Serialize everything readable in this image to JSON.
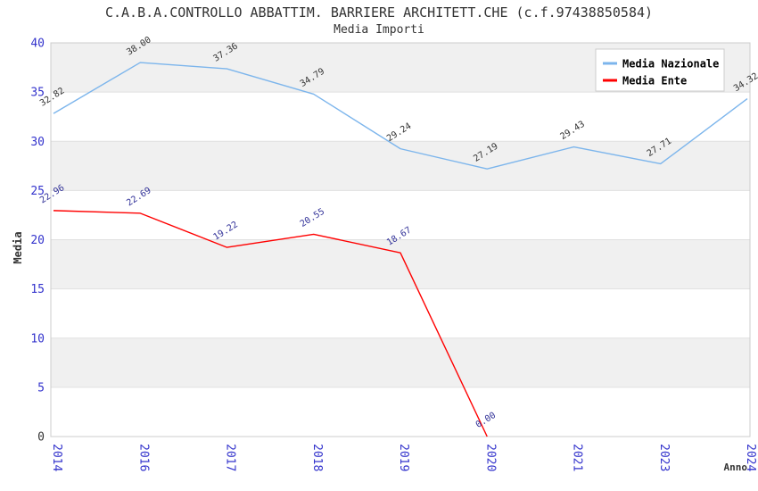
{
  "page": {
    "title": "C.A.B.A.CONTROLLO ABBATTIM. BARRIERE ARCHITETT.CHE (c.f.97438850584)",
    "subtitle": "Media Importi"
  },
  "chart_data": {
    "type": "line",
    "title": "C.A.B.A.CONTROLLO ABBATTIM. BARRIERE ARCHITETT.CHE (c.f.97438850584)",
    "subtitle": "Media Importi",
    "xlabel": "Anno",
    "ylabel": "Media",
    "categories": [
      "2014",
      "2016",
      "2017",
      "2018",
      "2019",
      "2020",
      "2021",
      "2023",
      "2024"
    ],
    "ylim": [
      0,
      40
    ],
    "ytick_step": 5,
    "yticks": [
      0,
      5,
      10,
      15,
      20,
      25,
      30,
      35,
      40
    ],
    "grid": "horizontal-bands-alternating",
    "legend_position": "top-right",
    "legend_entries": [
      "Media Nazionale",
      "Media Ente"
    ],
    "series": [
      {
        "name": "Media Nazionale",
        "color": "#7cb5ec",
        "label_color": "#333333",
        "values": [
          32.82,
          38.0,
          37.36,
          34.79,
          29.24,
          27.19,
          29.43,
          27.71,
          34.32
        ]
      },
      {
        "name": "Media Ente",
        "color": "#ff0000",
        "label_color": "#333399",
        "values": [
          22.96,
          22.69,
          19.22,
          20.55,
          18.67,
          0.0,
          null,
          null,
          null
        ]
      }
    ]
  },
  "colors": {
    "tick_label": "#3333cc",
    "zero_tick_label": "#333333",
    "band_gray": "#f0f0f0",
    "band_white": "#ffffff",
    "gridline": "#e0e0e0",
    "plot_border": "#cccccc",
    "title_text": "#333333",
    "axis_title_text": "#333333",
    "legend_text": "#000000",
    "legend_bg": "#ffffff",
    "legend_border": "#cccccc"
  }
}
